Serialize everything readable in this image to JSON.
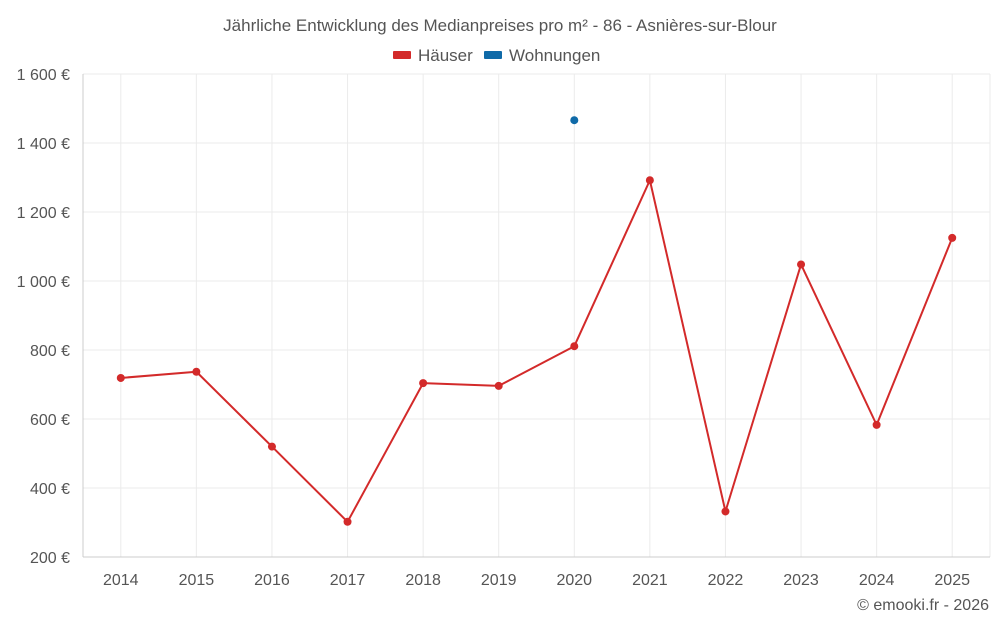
{
  "chart_data": {
    "type": "line",
    "title": "Jährliche Entwicklung des Medianpreises pro m² - 86 - Asnières-sur-Blour",
    "categories": [
      "2014",
      "2015",
      "2016",
      "2017",
      "2018",
      "2019",
      "2020",
      "2021",
      "2022",
      "2023",
      "2024",
      "2025"
    ],
    "series": [
      {
        "name": "Häuser",
        "color": "#d32a2a",
        "values": [
          719,
          737,
          520,
          302,
          704,
          696,
          811,
          1292,
          332,
          1048,
          583,
          1125
        ]
      },
      {
        "name": "Wohnungen",
        "color": "#0f6aa8",
        "values": [
          null,
          null,
          null,
          null,
          null,
          null,
          1466,
          null,
          null,
          null,
          null,
          null
        ]
      }
    ],
    "ylim": [
      200,
      1600
    ],
    "yticks": [
      200,
      400,
      600,
      800,
      1000,
      1200,
      1400,
      1600
    ],
    "ytick_labels": [
      "200 €",
      "400 €",
      "600 €",
      "800 €",
      "1 000 €",
      "1 200 €",
      "1 400 €",
      "1 600 €"
    ],
    "xlabel": "",
    "ylabel": "",
    "grid": true,
    "legend_position": "top-center"
  },
  "credit": "© emooki.fr - 2026"
}
